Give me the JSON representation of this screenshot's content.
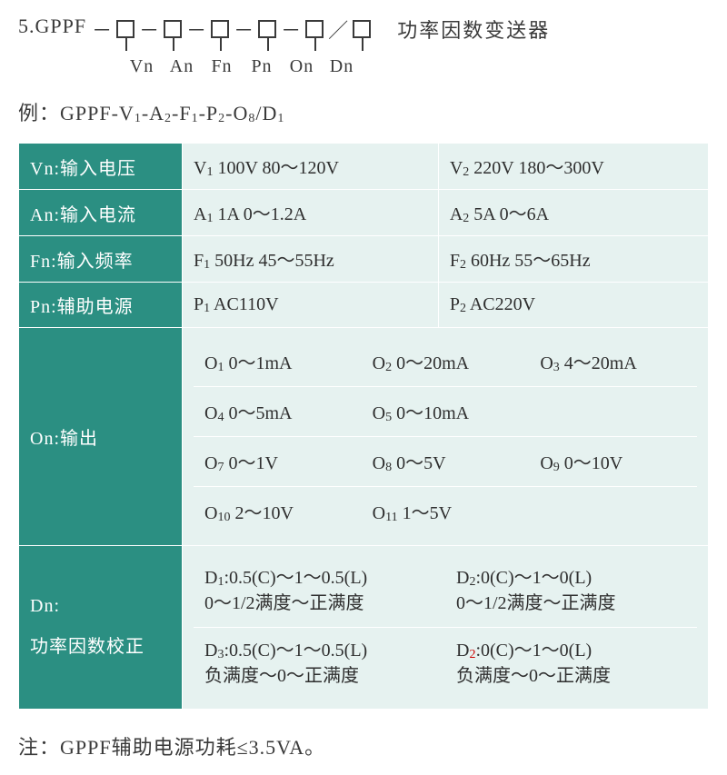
{
  "header": {
    "prefix": "5.GPPF",
    "placeholders": [
      "Vn",
      "An",
      "Fn",
      "Pn",
      "On",
      "Dn"
    ],
    "title_right": "功率因数变送器"
  },
  "example_label": "例：",
  "example_parts": [
    "GPPF-V",
    "1",
    "-A",
    "2",
    "-F",
    "1",
    "-P",
    "2",
    "-O",
    "8",
    "/D",
    "1"
  ],
  "rows": {
    "vn": {
      "label": "Vn:输入电压",
      "c1_a": "V",
      "c1_s": "1",
      "c1_b": " 100V   80～120V",
      "c2_a": "V",
      "c2_s": "2",
      "c2_b": " 220V   180～300V"
    },
    "an": {
      "label": "An:输入电流",
      "c1_a": "A",
      "c1_s": "1",
      "c1_b": " 1A   0～1.2A",
      "c2_a": "A",
      "c2_s": "2",
      "c2_b": " 5A   0～6A"
    },
    "fn": {
      "label": "Fn:输入频率",
      "c1_a": "F",
      "c1_s": "1",
      "c1_b": " 50Hz   45～55Hz",
      "c2_a": "F",
      "c2_s": "2",
      "c2_b": " 60Hz   55～65Hz"
    },
    "pn": {
      "label": "Pn:辅助电源",
      "c1_a": "P",
      "c1_s": "1",
      "c1_b": " AC110V",
      "c2_a": "P",
      "c2_s": "2",
      "c2_b": " AC220V"
    },
    "on": {
      "label": "On:输出",
      "cells": [
        {
          "a": "O",
          "s": "1",
          "b": " 0～1mA"
        },
        {
          "a": "O",
          "s": "2",
          "b": " 0～20mA"
        },
        {
          "a": "O",
          "s": "3",
          "b": " 4～20mA"
        },
        {
          "a": "O",
          "s": "4",
          "b": " 0～5mA"
        },
        {
          "a": "O",
          "s": "5",
          "b": " 0～10mA"
        },
        {
          "a": "",
          "s": "",
          "b": ""
        },
        {
          "a": "O",
          "s": "7",
          "b": " 0～1V"
        },
        {
          "a": "O",
          "s": "8",
          "b": " 0～5V"
        },
        {
          "a": "O",
          "s": "9",
          "b": " 0～10V"
        },
        {
          "a": "O",
          "s": "10",
          "b": " 2～10V"
        },
        {
          "a": "O",
          "s": "11",
          "b": " 1～5V"
        },
        {
          "a": "",
          "s": "",
          "b": ""
        }
      ]
    },
    "dn": {
      "label_l1": "Dn:",
      "label_l2": "功率因数校正",
      "cells": [
        {
          "a": "D",
          "s": "1",
          "b": ":0.5(C)～1～0.5(L)",
          "l2": "0～1/2满度～正满度",
          "red": false
        },
        {
          "a": "D",
          "s": "2",
          "b": ":0(C)～1～0(L)",
          "l2": "0～1/2满度～正满度",
          "red": false
        },
        {
          "a": "D",
          "s": "3",
          "b": ":0.5(C)～1～0.5(L)",
          "l2": "负满度～0～正满度",
          "red": false
        },
        {
          "a": "D",
          "s": "2",
          "b": ":0(C)～1～0(L)",
          "l2": "负满度～0～正满度",
          "red": true
        }
      ]
    }
  },
  "note": "注：GPPF辅助电源功耗≤3.5VA。",
  "colors": {
    "header_bg": "#2b8f82",
    "cell_bg": "#e6f2f0",
    "border": "#ffffff",
    "text": "#3a3a3a"
  }
}
